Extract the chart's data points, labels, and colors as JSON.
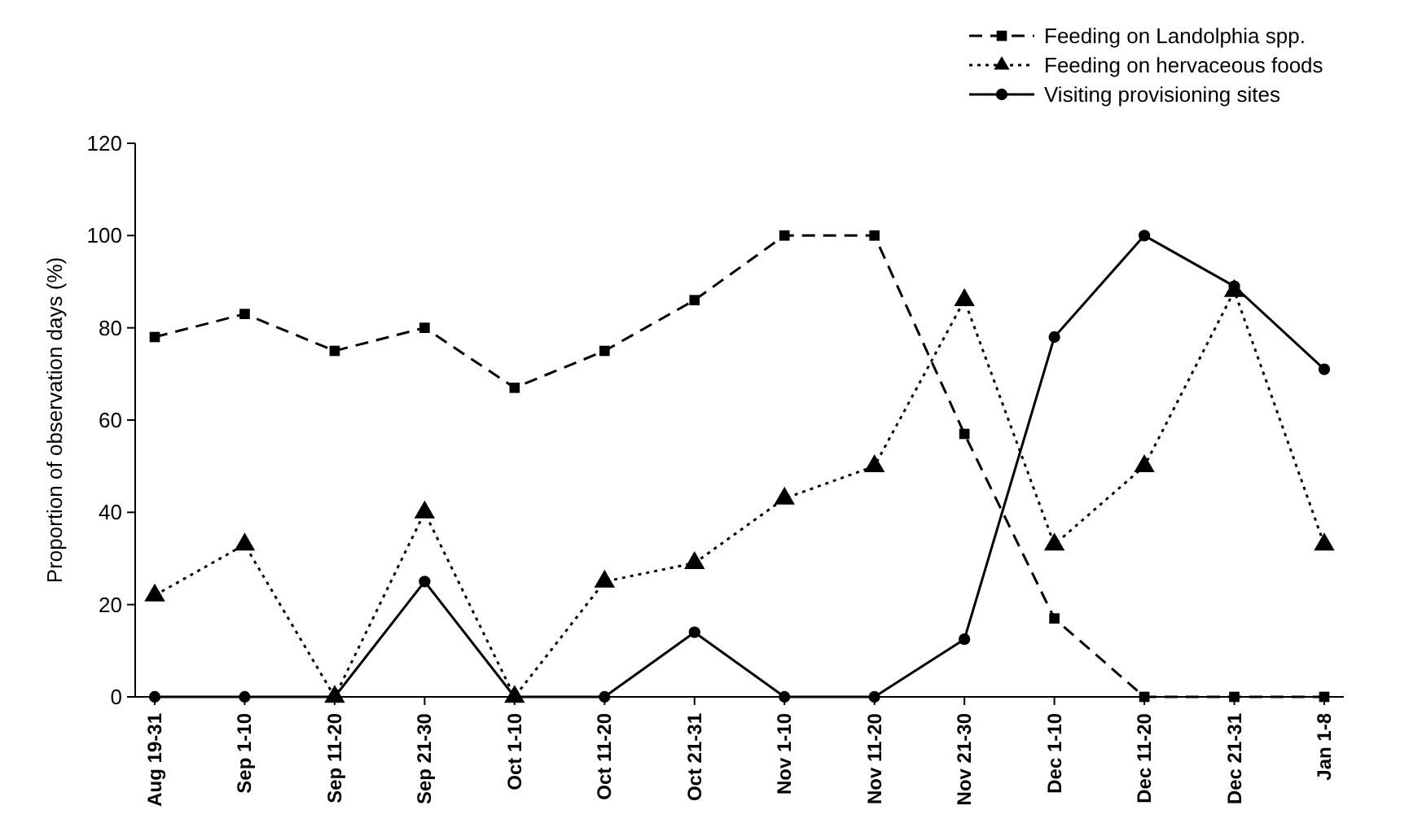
{
  "chart_data": {
    "type": "line",
    "ylabel": "Proportion of observation days (%)",
    "categories": [
      "Aug 19-31",
      "Sep 1-10",
      "Sep 11-20",
      "Sep 21-30",
      "Oct 1-10",
      "Oct 11-20",
      "Oct 21-31",
      "Nov 1-10",
      "Nov 11-20",
      "Nov 21-30",
      "Dec 1-10",
      "Dec 11-20",
      "Dec 21-31",
      "Jan 1-8"
    ],
    "series": [
      {
        "name": "Feeding on Landolphia spp.",
        "color": "#000000",
        "marker": "square",
        "line_style": "dashed",
        "values": [
          78,
          83,
          75,
          80,
          67,
          75,
          86,
          100,
          100,
          57,
          17,
          0,
          0,
          0
        ]
      },
      {
        "name": "Feeding on hervaceous foods",
        "color": "#000000",
        "marker": "triangle",
        "line_style": "dotted",
        "values": [
          22,
          33,
          0,
          40,
          0,
          25,
          29,
          43,
          50,
          86,
          33,
          50,
          88,
          33
        ]
      },
      {
        "name": "Visiting provisioning sites",
        "color": "#000000",
        "marker": "circle",
        "line_style": "solid",
        "values": [
          0,
          0,
          0,
          25,
          0,
          0,
          14,
          0,
          0,
          12.5,
          78,
          100,
          89,
          71
        ]
      }
    ],
    "ylim": [
      0,
      120
    ],
    "yticks": [
      0,
      20,
      40,
      60,
      80,
      100,
      120
    ],
    "grid": false,
    "legend": "top right"
  }
}
